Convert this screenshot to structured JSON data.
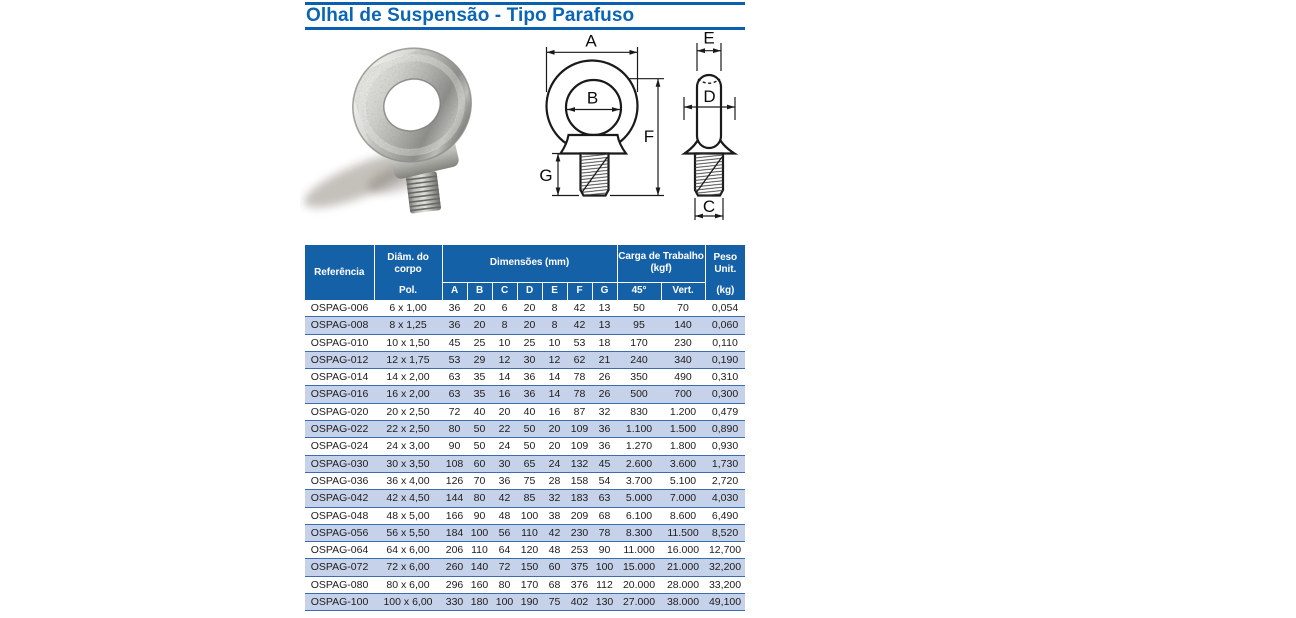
{
  "page": {
    "title": "Olhal de Suspensão - Tipo Parafuso"
  },
  "colors": {
    "title-blue": "#0a66b2",
    "rule-blue": "#0a5fae",
    "header-blue": "#1561a8",
    "stripe": "#c6d2ea",
    "stripe-border": "#3a6cb0",
    "row-text": "#1c1c1c"
  },
  "diagram": {
    "front": {
      "a": "A",
      "b": "B",
      "f": "F",
      "g": "G"
    },
    "side": {
      "e": "E",
      "d": "D",
      "c": "C"
    }
  },
  "table": {
    "header": {
      "referencia": "Referência",
      "diam_label": "Diâm. do corpo",
      "diam_sub": "Pol.",
      "dimensions": "Dimensões (mm)",
      "dim_cols": [
        "A",
        "B",
        "C",
        "D",
        "E",
        "F",
        "G"
      ],
      "carga_line1": "Carga de Trabalho",
      "carga_line2": "(kgf)",
      "col_45": "45°",
      "col_vert": "Vert.",
      "peso_label": "Peso Unit.",
      "peso_sub": "(kg)"
    },
    "rows": [
      [
        "OSPAG-006",
        "6 x 1,00",
        "36",
        "20",
        "6",
        "20",
        "8",
        "42",
        "13",
        "50",
        "70",
        "0,054"
      ],
      [
        "OSPAG-008",
        "8 x 1,25",
        "36",
        "20",
        "8",
        "20",
        "8",
        "42",
        "13",
        "95",
        "140",
        "0,060"
      ],
      [
        "OSPAG-010",
        "10 x 1,50",
        "45",
        "25",
        "10",
        "25",
        "10",
        "53",
        "18",
        "170",
        "230",
        "0,110"
      ],
      [
        "OSPAG-012",
        "12 x 1,75",
        "53",
        "29",
        "12",
        "30",
        "12",
        "62",
        "21",
        "240",
        "340",
        "0,190"
      ],
      [
        "OSPAG-014",
        "14 x 2,00",
        "63",
        "35",
        "14",
        "36",
        "14",
        "78",
        "26",
        "350",
        "490",
        "0,310"
      ],
      [
        "OSPAG-016",
        "16 x 2,00",
        "63",
        "35",
        "16",
        "36",
        "14",
        "78",
        "26",
        "500",
        "700",
        "0,300"
      ],
      [
        "OSPAG-020",
        "20 x 2,50",
        "72",
        "40",
        "20",
        "40",
        "16",
        "87",
        "32",
        "830",
        "1.200",
        "0,479"
      ],
      [
        "OSPAG-022",
        "22 x 2,50",
        "80",
        "50",
        "22",
        "50",
        "20",
        "109",
        "36",
        "1.100",
        "1.500",
        "0,890"
      ],
      [
        "OSPAG-024",
        "24 x 3,00",
        "90",
        "50",
        "24",
        "50",
        "20",
        "109",
        "36",
        "1.270",
        "1.800",
        "0,930"
      ],
      [
        "OSPAG-030",
        "30 x 3,50",
        "108",
        "60",
        "30",
        "65",
        "24",
        "132",
        "45",
        "2.600",
        "3.600",
        "1,730"
      ],
      [
        "OSPAG-036",
        "36 x 4,00",
        "126",
        "70",
        "36",
        "75",
        "28",
        "158",
        "54",
        "3.700",
        "5.100",
        "2,720"
      ],
      [
        "OSPAG-042",
        "42 x 4,50",
        "144",
        "80",
        "42",
        "85",
        "32",
        "183",
        "63",
        "5.000",
        "7.000",
        "4,030"
      ],
      [
        "OSPAG-048",
        "48 x 5,00",
        "166",
        "90",
        "48",
        "100",
        "38",
        "209",
        "68",
        "6.100",
        "8.600",
        "6,490"
      ],
      [
        "OSPAG-056",
        "56 x 5,50",
        "184",
        "100",
        "56",
        "110",
        "42",
        "230",
        "78",
        "8.300",
        "11.500",
        "8,520"
      ],
      [
        "OSPAG-064",
        "64 x 6,00",
        "206",
        "110",
        "64",
        "120",
        "48",
        "253",
        "90",
        "11.000",
        "16.000",
        "12,700"
      ],
      [
        "OSPAG-072",
        "72 x 6,00",
        "260",
        "140",
        "72",
        "150",
        "60",
        "375",
        "100",
        "15.000",
        "21.000",
        "32,200"
      ],
      [
        "OSPAG-080",
        "80 x 6,00",
        "296",
        "160",
        "80",
        "170",
        "68",
        "376",
        "112",
        "20.000",
        "28.000",
        "33,200"
      ],
      [
        "OSPAG-100",
        "100 x 6,00",
        "330",
        "180",
        "100",
        "190",
        "75",
        "402",
        "130",
        "27.000",
        "38.000",
        "49,100"
      ]
    ]
  }
}
